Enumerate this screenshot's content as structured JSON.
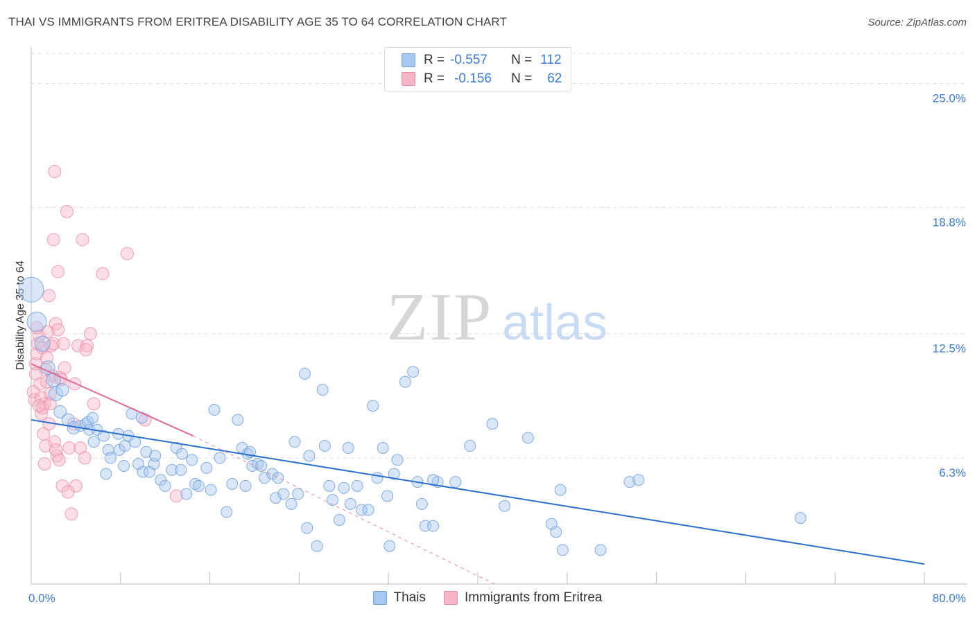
{
  "title": "THAI VS IMMIGRANTS FROM ERITREA DISABILITY AGE 35 TO 64 CORRELATION CHART",
  "source": "Source: ZipAtlas.com",
  "watermark": {
    "zip": "ZIP",
    "atlas": "atlas"
  },
  "legend": {
    "rows": [
      {
        "r_label": "R =",
        "r_value": "-0.557",
        "n_label": "N =",
        "n_value": "112"
      },
      {
        "r_label": "R =",
        "r_value": "-0.156",
        "n_label": "N =",
        "n_value": "62"
      }
    ]
  },
  "colors": {
    "thai_fill": "#a8c8f0",
    "thai_stroke": "#6f9fdc",
    "thai_line": "#2a6fd0",
    "eritrea_fill": "#f6b6c8",
    "eritrea_stroke": "#ec8aa6",
    "eritrea_line": "#e06a92",
    "axis_label": "#3a7bd5",
    "grid": "#dddddd"
  },
  "chart_data": {
    "type": "scatter",
    "title": "THAI VS IMMIGRANTS FROM ERITREA DISABILITY AGE 35 TO 64 CORRELATION CHART",
    "xlabel": "",
    "ylabel": "Disability Age 35 to 64",
    "xlim": [
      0,
      80
    ],
    "ylim": [
      0,
      26.5
    ],
    "x_tick_labels": [
      "0.0%",
      "80.0%"
    ],
    "y_ticks": [
      6.3,
      12.5,
      18.8,
      25.0
    ],
    "y_tick_labels": [
      "6.3%",
      "12.5%",
      "18.8%",
      "25.0%"
    ],
    "grid": true,
    "legend_position": "bottom",
    "series": [
      {
        "name": "Thais",
        "r": -0.557,
        "n": 112,
        "trend": [
          [
            0,
            8.2
          ],
          [
            80,
            1.0
          ]
        ],
        "points": [
          [
            0,
            14.7,
            18
          ],
          [
            0.5,
            13.1,
            14
          ],
          [
            1,
            12.0,
            11
          ],
          [
            1.5,
            10.8,
            10
          ],
          [
            2,
            10.2,
            10
          ],
          [
            2.2,
            9.5,
            10
          ],
          [
            2.8,
            9.7,
            9
          ],
          [
            2.6,
            8.6,
            9
          ],
          [
            3.3,
            8.2,
            9
          ],
          [
            3.8,
            7.8,
            9
          ],
          [
            4.4,
            7.9,
            8
          ],
          [
            4.9,
            8.0,
            8
          ],
          [
            5.1,
            8.1,
            8
          ],
          [
            5.2,
            7.7,
            8
          ],
          [
            5.6,
            7.1,
            8
          ],
          [
            5.9,
            7.7,
            8
          ],
          [
            5.5,
            8.3,
            8
          ],
          [
            6.5,
            7.4,
            8
          ],
          [
            6.9,
            6.7,
            8
          ],
          [
            7.1,
            6.3,
            8
          ],
          [
            6.7,
            5.5,
            8
          ],
          [
            7.8,
            7.5,
            8
          ],
          [
            7.9,
            6.7,
            8
          ],
          [
            8.3,
            5.9,
            8
          ],
          [
            8.4,
            6.9,
            8
          ],
          [
            8.7,
            7.4,
            8
          ],
          [
            9.0,
            8.5,
            8
          ],
          [
            9.3,
            7.1,
            8
          ],
          [
            9.6,
            6.0,
            8
          ],
          [
            9.9,
            8.3,
            8
          ],
          [
            10.0,
            5.6,
            8
          ],
          [
            10.3,
            6.6,
            8
          ],
          [
            10.6,
            5.6,
            8
          ],
          [
            11.0,
            6.0,
            8
          ],
          [
            11.1,
            6.4,
            8
          ],
          [
            11.6,
            5.2,
            8
          ],
          [
            12.0,
            4.9,
            8
          ],
          [
            12.6,
            5.7,
            8
          ],
          [
            13.0,
            6.8,
            8
          ],
          [
            13.4,
            5.7,
            8
          ],
          [
            13.5,
            6.5,
            8
          ],
          [
            13.9,
            4.5,
            8
          ],
          [
            14.4,
            6.2,
            8
          ],
          [
            14.7,
            5.0,
            8
          ],
          [
            15.0,
            4.9,
            8
          ],
          [
            15.7,
            5.8,
            8
          ],
          [
            16.1,
            4.7,
            8
          ],
          [
            16.4,
            8.7,
            8
          ],
          [
            16.9,
            6.3,
            8
          ],
          [
            17.5,
            3.6,
            8
          ],
          [
            18.0,
            5.0,
            8
          ],
          [
            18.5,
            8.2,
            8
          ],
          [
            18.9,
            6.8,
            8
          ],
          [
            19.2,
            4.9,
            8
          ],
          [
            19.4,
            6.5,
            8
          ],
          [
            19.6,
            6.6,
            8
          ],
          [
            19.8,
            5.9,
            8
          ],
          [
            20.3,
            6.0,
            8
          ],
          [
            20.6,
            5.9,
            8
          ],
          [
            20.9,
            5.3,
            8
          ],
          [
            21.6,
            5.5,
            8
          ],
          [
            21.9,
            4.3,
            8
          ],
          [
            22.1,
            5.3,
            8
          ],
          [
            22.6,
            4.5,
            8
          ],
          [
            23.3,
            4.0,
            8
          ],
          [
            23.6,
            7.1,
            8
          ],
          [
            23.9,
            4.5,
            8
          ],
          [
            24.5,
            10.5,
            8
          ],
          [
            24.7,
            2.8,
            8
          ],
          [
            24.9,
            6.4,
            8
          ],
          [
            25.6,
            1.9,
            8
          ],
          [
            26.1,
            9.7,
            8
          ],
          [
            26.3,
            6.9,
            8
          ],
          [
            26.7,
            4.9,
            8
          ],
          [
            27.0,
            4.2,
            8
          ],
          [
            27.6,
            3.2,
            8
          ],
          [
            28.0,
            4.8,
            8
          ],
          [
            28.4,
            6.8,
            8
          ],
          [
            28.6,
            4.0,
            8
          ],
          [
            29.2,
            4.9,
            8
          ],
          [
            29.6,
            3.7,
            8
          ],
          [
            30.2,
            3.7,
            8
          ],
          [
            30.6,
            8.9,
            8
          ],
          [
            31.0,
            5.3,
            8
          ],
          [
            31.5,
            6.8,
            8
          ],
          [
            31.9,
            4.4,
            8
          ],
          [
            32.1,
            1.9,
            8
          ],
          [
            32.5,
            5.5,
            8
          ],
          [
            32.8,
            6.2,
            8
          ],
          [
            33.5,
            10.1,
            8
          ],
          [
            34.2,
            10.6,
            8
          ],
          [
            34.6,
            5.1,
            8
          ],
          [
            35.0,
            4.0,
            8
          ],
          [
            35.3,
            2.9,
            8
          ],
          [
            36.0,
            2.9,
            8
          ],
          [
            36.4,
            5.1,
            8
          ],
          [
            36.0,
            5.2,
            8
          ],
          [
            38.0,
            5.1,
            8
          ],
          [
            39.3,
            6.9,
            8
          ],
          [
            41.3,
            8.0,
            8
          ],
          [
            42.4,
            3.9,
            8
          ],
          [
            44.5,
            7.3,
            8
          ],
          [
            46.6,
            3.0,
            8
          ],
          [
            47.0,
            2.6,
            8
          ],
          [
            47.4,
            4.7,
            8
          ],
          [
            47.6,
            1.7,
            8
          ],
          [
            51.0,
            1.7,
            8
          ],
          [
            53.6,
            5.1,
            8
          ],
          [
            54.4,
            5.2,
            8
          ],
          [
            68.9,
            3.3,
            8
          ]
        ]
      },
      {
        "name": "Immigrants from Eritrea",
        "r": -0.156,
        "n": 62,
        "trend": [
          [
            0,
            11.0
          ],
          [
            14.5,
            7.4
          ]
        ],
        "trend_extension": [
          [
            14.5,
            7.4
          ],
          [
            41.5,
            0.0
          ]
        ],
        "points": [
          [
            0.2,
            9.6,
            9
          ],
          [
            0.3,
            9.2,
            9
          ],
          [
            0.4,
            10.5,
            9
          ],
          [
            0.4,
            11.0,
            9
          ],
          [
            0.5,
            11.5,
            9
          ],
          [
            0.6,
            12.0,
            9
          ],
          [
            0.7,
            12.4,
            9
          ],
          [
            0.8,
            10.0,
            9
          ],
          [
            0.9,
            8.5,
            9
          ],
          [
            1.0,
            11.8,
            9
          ],
          [
            1.1,
            7.5,
            9
          ],
          [
            1.2,
            9.0,
            9
          ],
          [
            1.3,
            10.7,
            9
          ],
          [
            1.4,
            11.3,
            9
          ],
          [
            1.5,
            12.6,
            9
          ],
          [
            1.6,
            14.4,
            9
          ],
          [
            1.7,
            9.5,
            9
          ],
          [
            1.8,
            11.9,
            9
          ],
          [
            1.9,
            10.4,
            9
          ],
          [
            2.0,
            12.0,
            9
          ],
          [
            2.1,
            7.1,
            9
          ],
          [
            2.2,
            13.0,
            9
          ],
          [
            2.3,
            6.4,
            9
          ],
          [
            2.4,
            12.7,
            9
          ],
          [
            2.5,
            6.2,
            9
          ],
          [
            2.6,
            10.3,
            9
          ],
          [
            2.7,
            10.2,
            9
          ],
          [
            2.8,
            4.9,
            9
          ],
          [
            3.0,
            10.8,
            9
          ],
          [
            3.2,
            18.6,
            9
          ],
          [
            3.4,
            6.8,
            9
          ],
          [
            3.6,
            3.5,
            9
          ],
          [
            3.8,
            8.0,
            9
          ],
          [
            4.0,
            4.9,
            9
          ],
          [
            4.2,
            11.9,
            9
          ],
          [
            4.4,
            6.8,
            9
          ],
          [
            4.6,
            17.2,
            9
          ],
          [
            4.8,
            6.3,
            9
          ],
          [
            5.0,
            11.9,
            9
          ],
          [
            5.3,
            12.5,
            9
          ],
          [
            5.6,
            9.0,
            9
          ],
          [
            1.0,
            8.8,
            9
          ],
          [
            1.3,
            6.9,
            9
          ],
          [
            1.6,
            8.0,
            9
          ],
          [
            2.0,
            17.2,
            9
          ],
          [
            2.4,
            15.6,
            9
          ],
          [
            2.1,
            20.6,
            9
          ],
          [
            6.4,
            15.5,
            9
          ],
          [
            8.6,
            16.5,
            9
          ],
          [
            13.0,
            4.4,
            9
          ],
          [
            3.3,
            4.6,
            9
          ],
          [
            1.2,
            6.0,
            9
          ],
          [
            0.9,
            9.3,
            9
          ],
          [
            1.7,
            9.0,
            9
          ],
          [
            2.9,
            12.0,
            9
          ],
          [
            3.9,
            10.0,
            9
          ],
          [
            0.5,
            12.8,
            9
          ],
          [
            0.7,
            8.9,
            9
          ],
          [
            1.4,
            10.1,
            9
          ],
          [
            2.2,
            6.7,
            9
          ],
          [
            10.2,
            8.2,
            9
          ],
          [
            4.9,
            11.7,
            9
          ]
        ]
      }
    ]
  }
}
